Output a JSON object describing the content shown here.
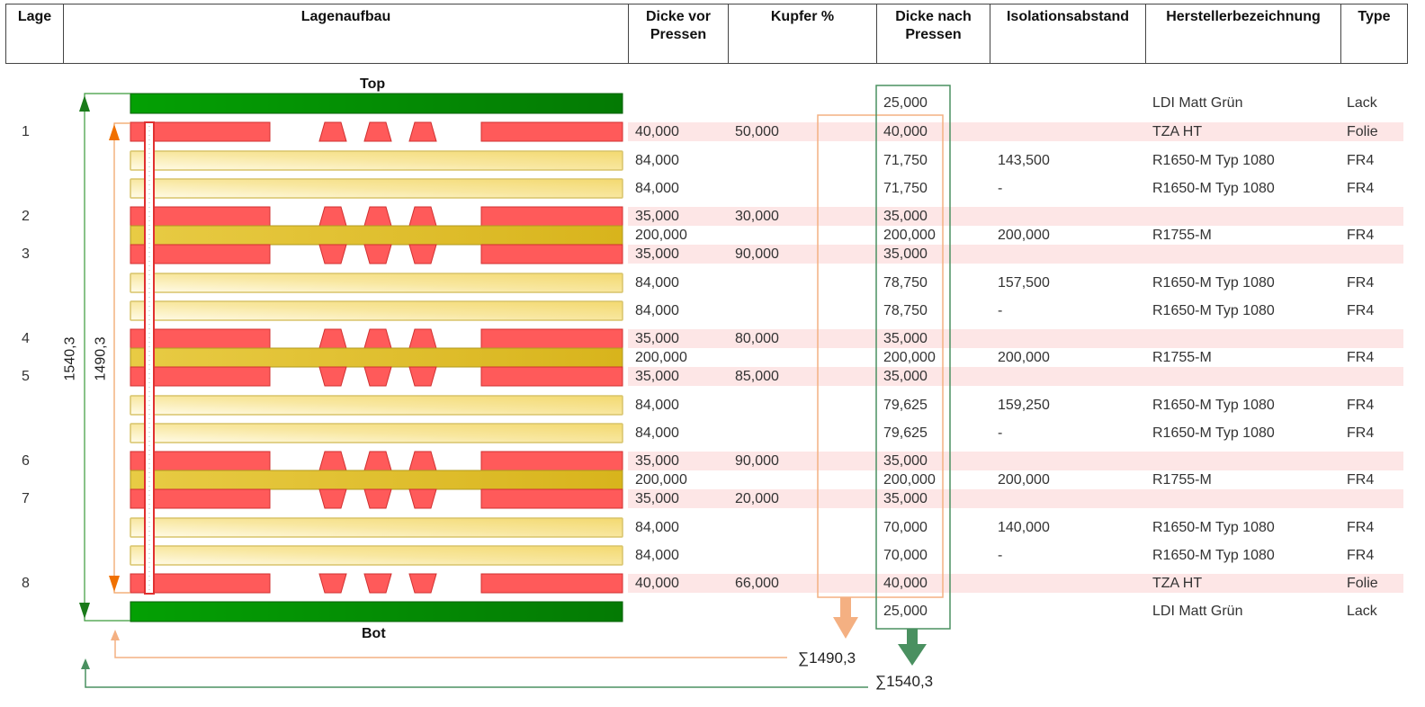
{
  "headers": [
    "Lage",
    "Lagenaufbau",
    "Dicke vor Pressen",
    "Kupfer %",
    "Dicke nach Pressen",
    "Isolationsabstand",
    "Herstellerbezeichnung",
    "Type"
  ],
  "labels": {
    "top": "Top",
    "bot": "Bot",
    "total_left": "1540,3",
    "inner_left": "1490,3",
    "sum_inner": "∑1490,3",
    "sum_total": "∑1540,3"
  },
  "colors": {
    "copper": "#ff5a5a",
    "solder_mask": "#0a9a0a",
    "prepreg": "#f7e49a",
    "core": "#e0c030",
    "inner_bracket": "#f4b082",
    "total_bracket": "#4a9060"
  },
  "rows": [
    {
      "kind": "lack",
      "lage": "",
      "vor": "",
      "cu": "",
      "nach": "25,000",
      "iso": "",
      "name": "LDI Matt Grün",
      "type": "Lack"
    },
    {
      "kind": "cu",
      "dir": "down",
      "lage": "1",
      "vor": "40,000",
      "cu": "50,000",
      "nach": "40,000",
      "iso": "",
      "name": "TZA HT",
      "type": "Folie"
    },
    {
      "kind": "pp",
      "lage": "",
      "vor": "84,000",
      "cu": "",
      "nach": "71,750",
      "iso": "143,500",
      "name": "R1650-M Typ 1080",
      "type": "FR4"
    },
    {
      "kind": "pp",
      "lage": "",
      "vor": "84,000",
      "cu": "",
      "nach": "71,750",
      "iso": "-",
      "name": "R1650-M Typ 1080",
      "type": "FR4"
    },
    {
      "kind": "cu",
      "dir": "down",
      "lage": "2",
      "vor": "35,000",
      "cu": "30,000",
      "nach": "35,000",
      "iso": "",
      "name": "",
      "type": ""
    },
    {
      "kind": "core",
      "lage": "",
      "vor": "200,000",
      "cu": "",
      "nach": "200,000",
      "iso": "200,000",
      "name": "R1755-M",
      "type": "FR4"
    },
    {
      "kind": "cu",
      "dir": "up",
      "lage": "3",
      "vor": "35,000",
      "cu": "90,000",
      "nach": "35,000",
      "iso": "",
      "name": "",
      "type": ""
    },
    {
      "kind": "pp",
      "lage": "",
      "vor": "84,000",
      "cu": "",
      "nach": "78,750",
      "iso": "157,500",
      "name": "R1650-M Typ 1080",
      "type": "FR4"
    },
    {
      "kind": "pp",
      "lage": "",
      "vor": "84,000",
      "cu": "",
      "nach": "78,750",
      "iso": "-",
      "name": "R1650-M Typ 1080",
      "type": "FR4"
    },
    {
      "kind": "cu",
      "dir": "down",
      "lage": "4",
      "vor": "35,000",
      "cu": "80,000",
      "nach": "35,000",
      "iso": "",
      "name": "",
      "type": ""
    },
    {
      "kind": "core",
      "lage": "",
      "vor": "200,000",
      "cu": "",
      "nach": "200,000",
      "iso": "200,000",
      "name": "R1755-M",
      "type": "FR4"
    },
    {
      "kind": "cu",
      "dir": "up",
      "lage": "5",
      "vor": "35,000",
      "cu": "85,000",
      "nach": "35,000",
      "iso": "",
      "name": "",
      "type": ""
    },
    {
      "kind": "pp",
      "lage": "",
      "vor": "84,000",
      "cu": "",
      "nach": "79,625",
      "iso": "159,250",
      "name": "R1650-M Typ 1080",
      "type": "FR4"
    },
    {
      "kind": "pp",
      "lage": "",
      "vor": "84,000",
      "cu": "",
      "nach": "79,625",
      "iso": "-",
      "name": "R1650-M Typ 1080",
      "type": "FR4"
    },
    {
      "kind": "cu",
      "dir": "down",
      "lage": "6",
      "vor": "35,000",
      "cu": "90,000",
      "nach": "35,000",
      "iso": "",
      "name": "",
      "type": ""
    },
    {
      "kind": "core",
      "lage": "",
      "vor": "200,000",
      "cu": "",
      "nach": "200,000",
      "iso": "200,000",
      "name": "R1755-M",
      "type": "FR4"
    },
    {
      "kind": "cu",
      "dir": "up",
      "lage": "7",
      "vor": "35,000",
      "cu": "20,000",
      "nach": "35,000",
      "iso": "",
      "name": "",
      "type": ""
    },
    {
      "kind": "pp",
      "lage": "",
      "vor": "84,000",
      "cu": "",
      "nach": "70,000",
      "iso": "140,000",
      "name": "R1650-M Typ 1080",
      "type": "FR4"
    },
    {
      "kind": "pp",
      "lage": "",
      "vor": "84,000",
      "cu": "",
      "nach": "70,000",
      "iso": "-",
      "name": "R1650-M Typ 1080",
      "type": "FR4"
    },
    {
      "kind": "cu",
      "dir": "up",
      "lage": "8",
      "vor": "40,000",
      "cu": "66,000",
      "nach": "40,000",
      "iso": "",
      "name": "TZA HT",
      "type": "Folie"
    },
    {
      "kind": "lack",
      "lage": "",
      "vor": "",
      "cu": "",
      "nach": "25,000",
      "iso": "",
      "name": "LDI Matt Grün",
      "type": "Lack"
    }
  ]
}
